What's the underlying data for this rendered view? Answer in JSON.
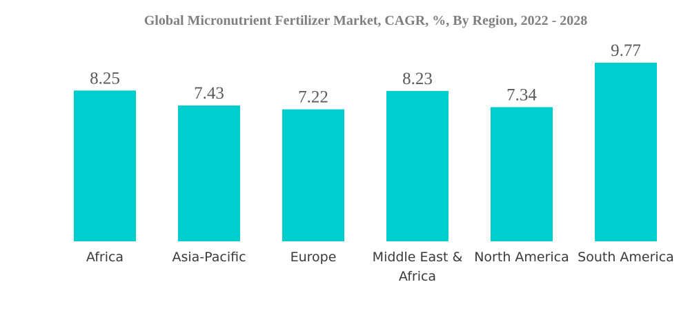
{
  "chart_data": {
    "type": "bar",
    "title": "Global Micronutrient Fertilizer Market, CAGR, %, By Region, 2022 - 2028",
    "categories": [
      "Africa",
      "Asia-Pacific",
      "Europe",
      "Middle East & Africa",
      "North America",
      "South America"
    ],
    "category_lines": [
      [
        "Africa"
      ],
      [
        "Asia-Pacific"
      ],
      [
        "Europe"
      ],
      [
        "Middle East &",
        "Africa"
      ],
      [
        "North America"
      ],
      [
        "South America"
      ]
    ],
    "values": [
      8.25,
      7.43,
      7.22,
      8.23,
      7.34,
      9.77
    ],
    "value_labels": [
      "8.25",
      "7.43",
      "7.22",
      "8.23",
      "7.34",
      "9.77"
    ],
    "xlabel": "",
    "ylabel": "",
    "ylim": [
      0,
      9.77
    ],
    "grid": false,
    "legend": "none"
  },
  "colors": {
    "bar": "#00CDCD",
    "title": "#7F7F7F",
    "value_label": "#595959",
    "category_label": "#3A3A3A"
  }
}
